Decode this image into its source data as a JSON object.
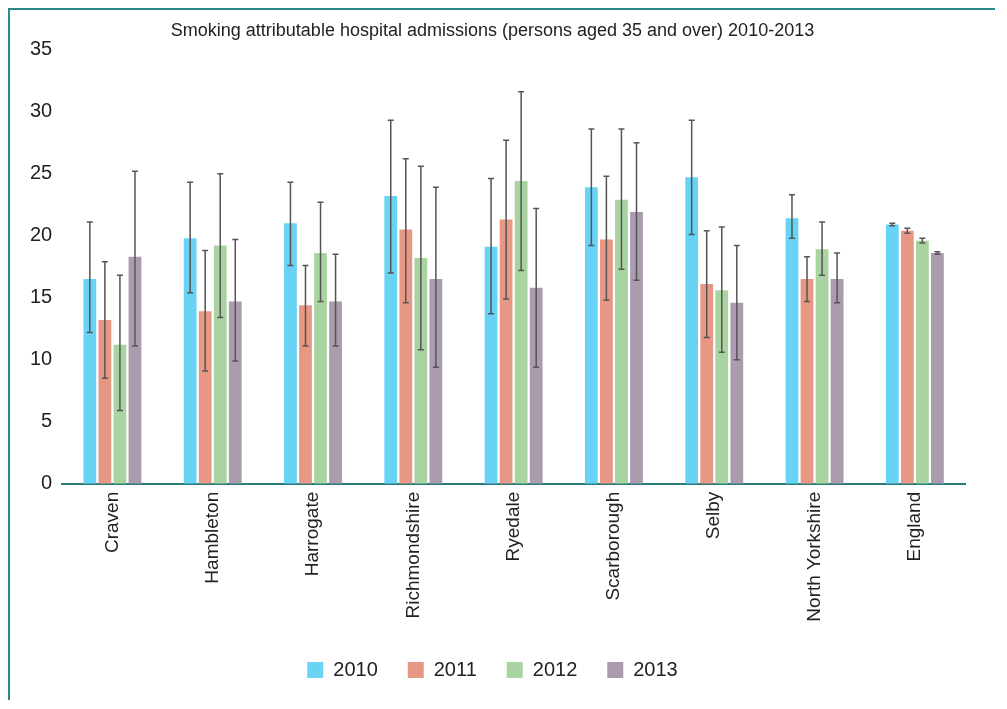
{
  "chart_data": {
    "type": "bar",
    "title": "Smoking attributable hospital admissions (persons aged 35 and over) 2010-2013",
    "categories": [
      "Craven",
      "Hambleton",
      "Harrogate",
      "Richmondshire",
      "Ryedale",
      "Scarborough",
      "Selby",
      "North Yorkshire",
      "England"
    ],
    "ylim": [
      0,
      35
    ],
    "yticks": [
      0,
      5,
      10,
      15,
      20,
      25,
      30,
      35
    ],
    "grid": false,
    "legend": "bottom",
    "series": [
      {
        "name": "2010",
        "color": "#68d3f5",
        "values": [
          16.5,
          19.8,
          21.0,
          23.2,
          19.1,
          23.9,
          24.7,
          21.4,
          20.9
        ],
        "errors": [
          [
            12.2,
            21.1
          ],
          [
            15.4,
            24.3
          ],
          [
            17.6,
            24.3
          ],
          [
            17.0,
            29.3
          ],
          [
            13.7,
            24.6
          ],
          [
            19.2,
            28.6
          ],
          [
            20.1,
            29.3
          ],
          [
            19.8,
            23.3
          ],
          [
            20.8,
            21.0
          ]
        ]
      },
      {
        "name": "2011",
        "color": "#e79884",
        "values": [
          13.2,
          13.9,
          14.4,
          20.5,
          21.3,
          19.7,
          16.1,
          16.5,
          20.4
        ],
        "errors": [
          [
            8.5,
            17.9
          ],
          [
            9.1,
            18.8
          ],
          [
            11.1,
            17.6
          ],
          [
            14.6,
            26.2
          ],
          [
            14.9,
            27.7
          ],
          [
            14.8,
            24.8
          ],
          [
            11.8,
            20.4
          ],
          [
            14.7,
            18.3
          ],
          [
            20.2,
            20.6
          ]
        ]
      },
      {
        "name": "2012",
        "color": "#a9d3a0",
        "values": [
          11.2,
          19.2,
          18.6,
          18.2,
          24.4,
          22.9,
          15.6,
          18.9,
          19.6
        ],
        "errors": [
          [
            5.9,
            16.8
          ],
          [
            13.4,
            25.0
          ],
          [
            14.7,
            22.7
          ],
          [
            10.8,
            25.6
          ],
          [
            17.2,
            31.6
          ],
          [
            17.3,
            28.6
          ],
          [
            10.6,
            20.7
          ],
          [
            16.8,
            21.1
          ],
          [
            19.4,
            19.8
          ]
        ]
      },
      {
        "name": "2013",
        "color": "#aa9bae",
        "values": [
          18.3,
          14.7,
          14.7,
          16.5,
          15.8,
          21.9,
          14.6,
          16.5,
          18.6
        ],
        "errors": [
          [
            11.1,
            25.2
          ],
          [
            9.9,
            19.7
          ],
          [
            11.1,
            18.5
          ],
          [
            9.4,
            23.9
          ],
          [
            9.4,
            22.2
          ],
          [
            16.4,
            27.5
          ],
          [
            10.0,
            19.2
          ],
          [
            14.6,
            18.6
          ],
          [
            18.5,
            18.7
          ]
        ]
      }
    ]
  }
}
